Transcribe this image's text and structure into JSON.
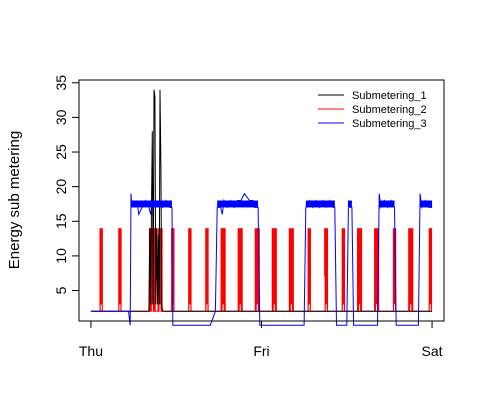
{
  "chart_data": {
    "type": "line",
    "title": "",
    "xlabel": "",
    "ylabel": "Energy sub metering",
    "x_ticks": [
      "Thu",
      "Fri",
      "Sat"
    ],
    "x_tick_values": [
      0,
      1,
      2
    ],
    "xlim": [
      -0.07,
      2.07
    ],
    "y_ticks": [
      5,
      10,
      15,
      20,
      25,
      30,
      35
    ],
    "ylim": [
      0.6,
      35.4
    ],
    "legend": {
      "position": "top-right",
      "entries": [
        "Submetering_1",
        "Submetering_2",
        "Submetering_3"
      ]
    },
    "series": [
      {
        "name": "Submetering_1",
        "color": "#000000",
        "note": "near-zero baseline with bursts around Thu 13:00",
        "points": [
          [
            0,
            2
          ],
          [
            0.34,
            2
          ],
          [
            0.345,
            14
          ],
          [
            0.35,
            3
          ],
          [
            0.355,
            17
          ],
          [
            0.36,
            28
          ],
          [
            0.365,
            3
          ],
          [
            0.37,
            34
          ],
          [
            0.375,
            33
          ],
          [
            0.38,
            3
          ],
          [
            0.385,
            14
          ],
          [
            0.39,
            3
          ],
          [
            0.395,
            13
          ],
          [
            0.4,
            3
          ],
          [
            0.405,
            34
          ],
          [
            0.41,
            23
          ],
          [
            0.415,
            3
          ],
          [
            0.42,
            2
          ],
          [
            2,
            2
          ]
        ]
      },
      {
        "name": "Submetering_2",
        "color": "#ff0000",
        "note": "baseline ~2 with periodic rectangular pulses to ~14",
        "base": 2,
        "peak": 14,
        "pulses": [
          [
            0.05,
            0.07
          ],
          [
            0.16,
            0.18
          ],
          [
            0.34,
            0.38
          ],
          [
            0.39,
            0.42
          ],
          [
            0.47,
            0.49
          ],
          [
            0.57,
            0.59
          ],
          [
            0.67,
            0.69
          ],
          [
            0.76,
            0.79
          ],
          [
            0.86,
            0.89
          ],
          [
            0.96,
            0.99
          ],
          [
            1.06,
            1.09
          ],
          [
            1.16,
            1.19
          ],
          [
            1.27,
            1.29
          ],
          [
            1.37,
            1.39
          ],
          [
            1.47,
            1.49
          ],
          [
            1.56,
            1.59
          ],
          [
            1.66,
            1.69
          ],
          [
            1.77,
            1.79
          ],
          [
            1.86,
            1.89
          ],
          [
            1.98,
            2.0
          ]
        ],
        "extra_points": [
          [
            0.165,
            8
          ],
          [
            1.37,
            7
          ]
        ]
      },
      {
        "name": "Submetering_3",
        "color": "#0000ff",
        "note": "baseline ~0-1 with plateaus around 17-18",
        "points": [
          [
            0,
            2
          ],
          [
            0.22,
            2
          ],
          [
            0.23,
            0
          ],
          [
            0.235,
            19
          ],
          [
            0.24,
            17
          ],
          [
            0.25,
            18
          ],
          [
            0.26,
            17
          ],
          [
            0.27,
            18
          ],
          [
            0.28,
            16
          ],
          [
            0.3,
            17
          ],
          [
            0.32,
            18
          ],
          [
            0.34,
            17
          ],
          [
            0.35,
            16
          ],
          [
            0.36,
            18
          ],
          [
            0.38,
            17
          ],
          [
            0.4,
            18
          ],
          [
            0.42,
            17
          ],
          [
            0.44,
            18
          ],
          [
            0.46,
            17
          ],
          [
            0.475,
            17
          ],
          [
            0.48,
            0
          ],
          [
            0.7,
            0
          ],
          [
            0.73,
            2
          ],
          [
            0.74,
            17
          ],
          [
            0.76,
            17
          ],
          [
            0.77,
            16
          ],
          [
            0.78,
            18
          ],
          [
            0.8,
            17
          ],
          [
            0.82,
            18
          ],
          [
            0.84,
            17
          ],
          [
            0.86,
            18
          ],
          [
            0.88,
            18
          ],
          [
            0.9,
            19
          ],
          [
            0.93,
            18
          ],
          [
            0.95,
            18
          ],
          [
            0.96,
            17
          ],
          [
            0.98,
            17
          ],
          [
            0.99,
            0
          ],
          [
            1.25,
            0
          ],
          [
            1.26,
            17
          ],
          [
            1.28,
            18
          ],
          [
            1.3,
            17
          ],
          [
            1.32,
            18
          ],
          [
            1.34,
            17
          ],
          [
            1.36,
            18
          ],
          [
            1.38,
            17
          ],
          [
            1.4,
            18
          ],
          [
            1.42,
            17
          ],
          [
            1.43,
            17
          ],
          [
            1.44,
            0
          ],
          [
            1.5,
            0
          ],
          [
            1.51,
            18
          ],
          [
            1.52,
            17
          ],
          [
            1.53,
            17
          ],
          [
            1.54,
            0
          ],
          [
            1.68,
            0
          ],
          [
            1.69,
            19
          ],
          [
            1.7,
            17
          ],
          [
            1.72,
            18
          ],
          [
            1.74,
            17
          ],
          [
            1.76,
            18
          ],
          [
            1.78,
            17
          ],
          [
            1.79,
            0
          ],
          [
            1.92,
            0
          ],
          [
            1.93,
            19
          ],
          [
            1.94,
            17
          ],
          [
            1.96,
            18
          ],
          [
            1.98,
            17
          ],
          [
            2.0,
            17
          ]
        ]
      }
    ]
  }
}
